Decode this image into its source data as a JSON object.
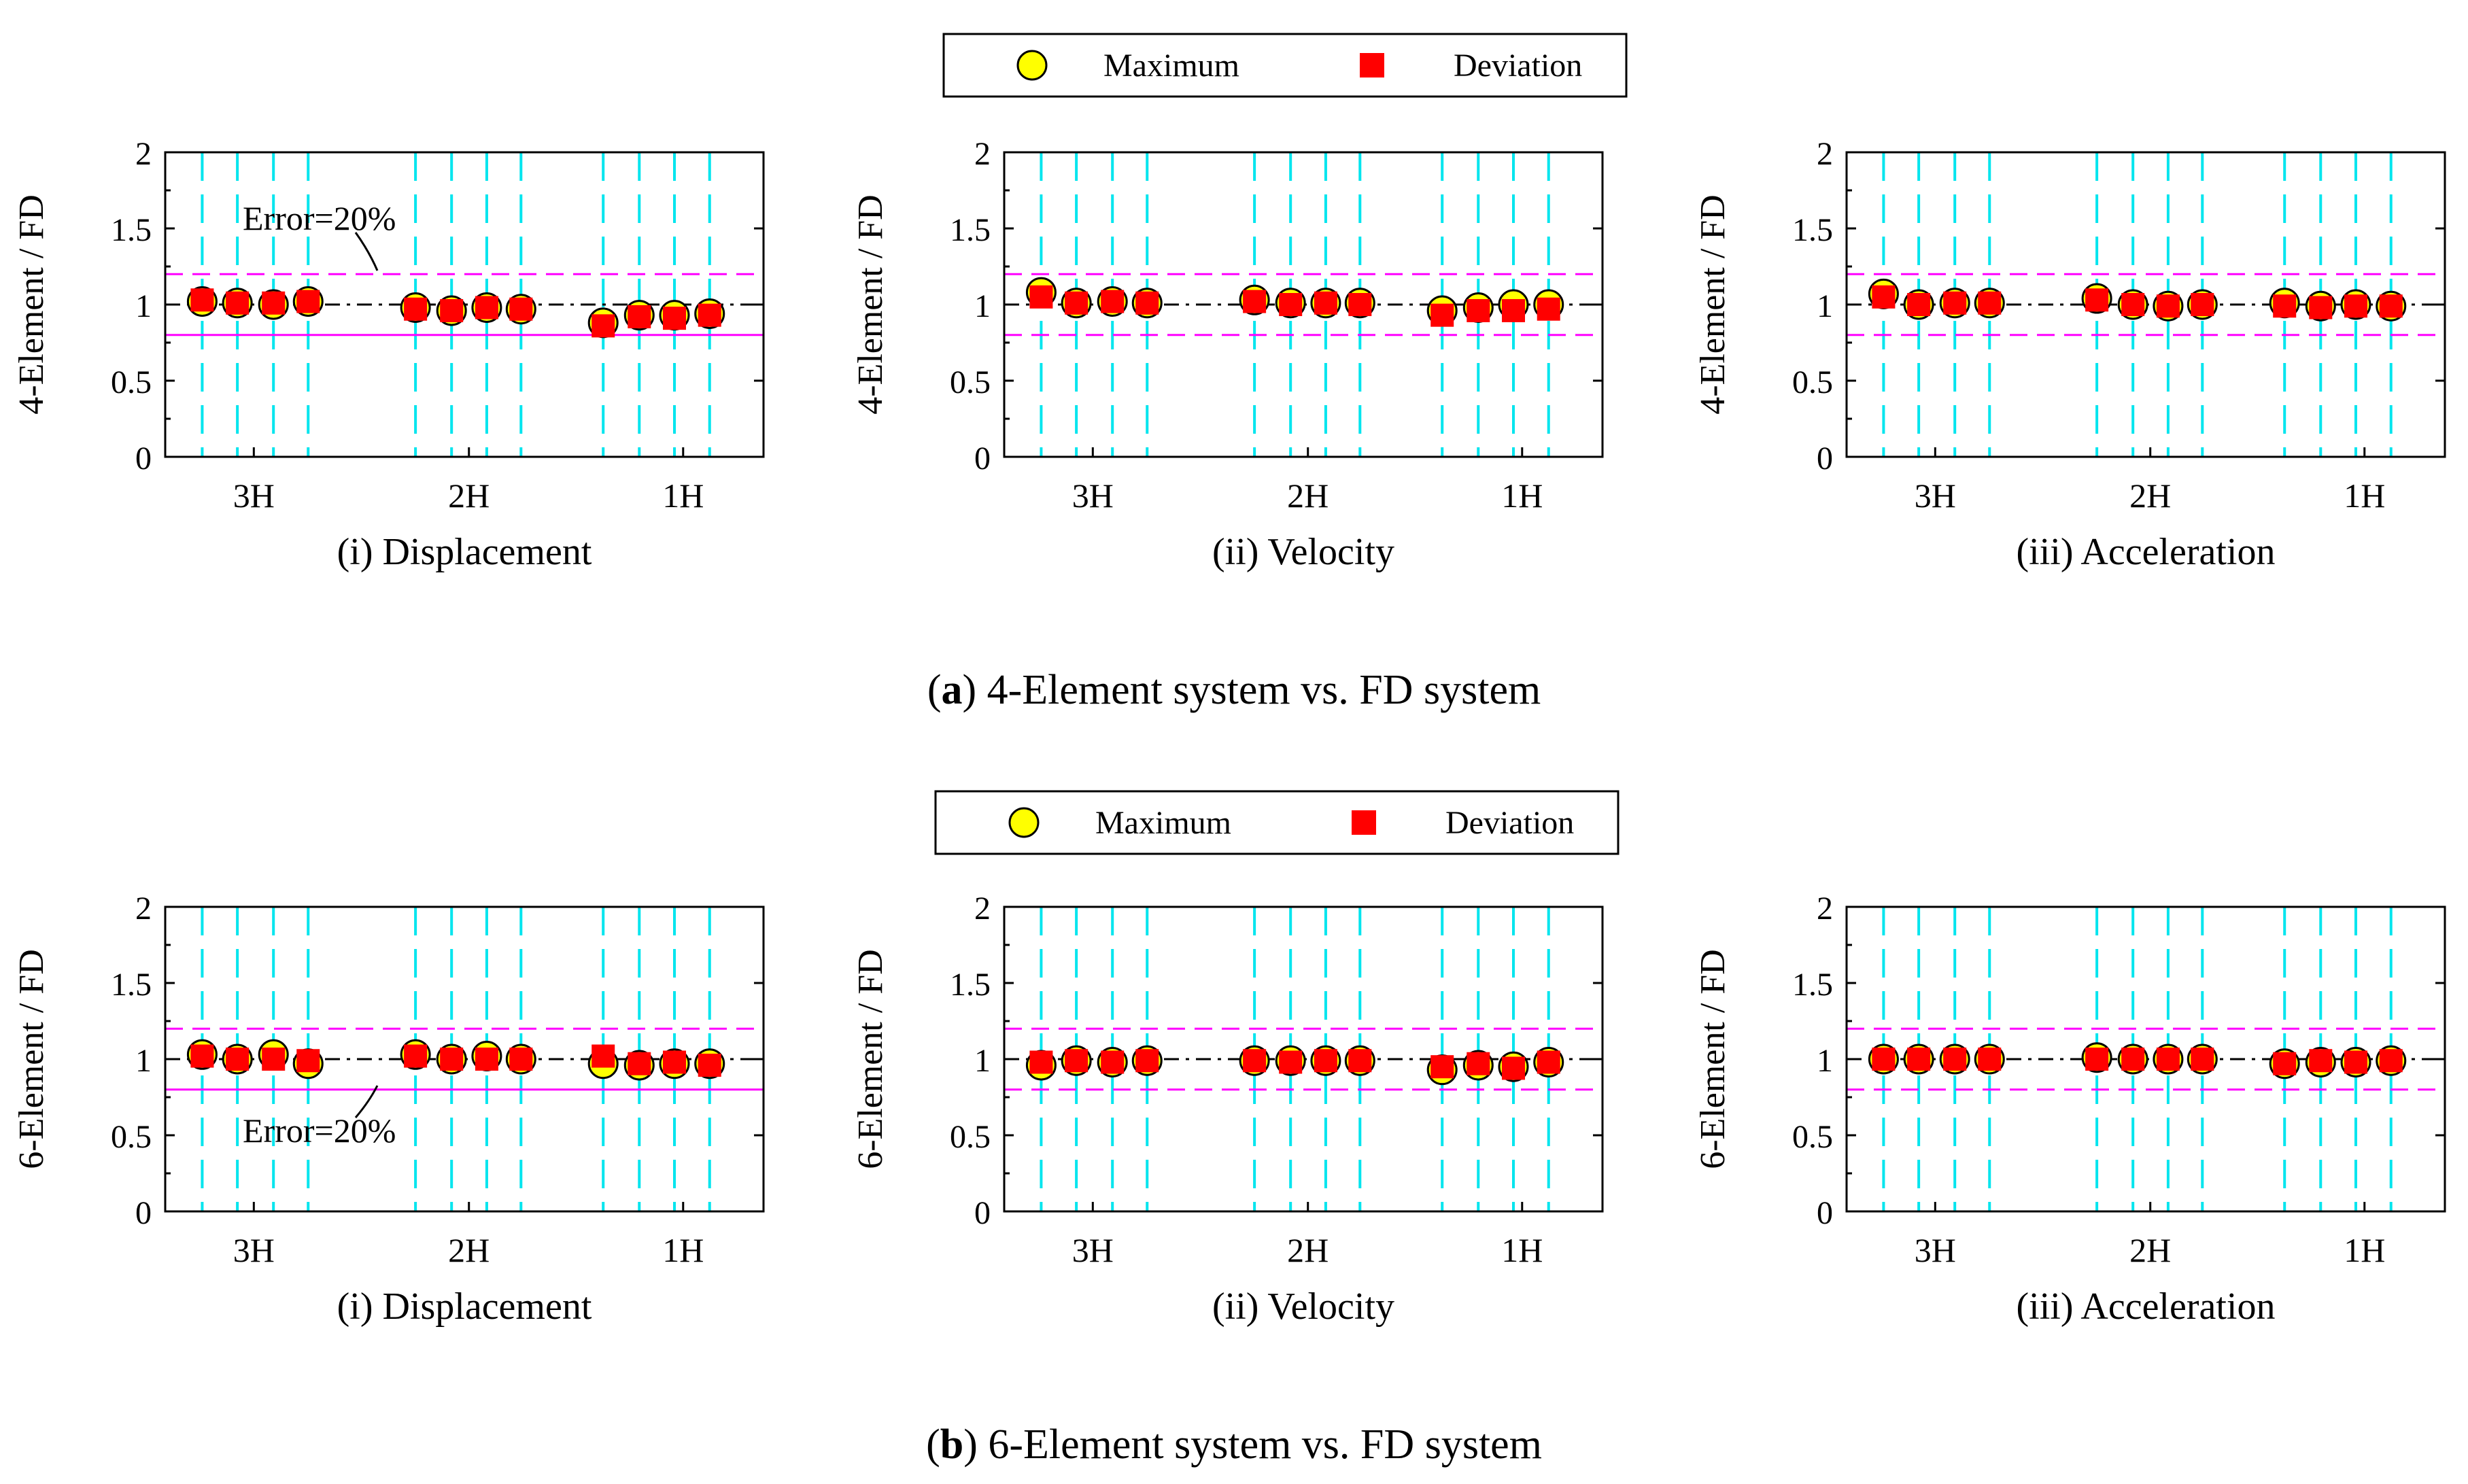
{
  "colors": {
    "maximum": "#ffff00",
    "deviation": "#ff0000",
    "grid_dash": "#00e5ee",
    "error_band": "#ff00ff",
    "reference": "#000000"
  },
  "legend": {
    "items": [
      {
        "label": "Maximum",
        "marker": "circle"
      },
      {
        "label": "Deviation",
        "marker": "square"
      }
    ]
  },
  "annotation": "Error=20%",
  "chart_data": [
    {
      "panel": "a",
      "caption_tag": "a",
      "caption": ") 4-Element system vs. FD system",
      "caption_open": "(",
      "type": "scatter",
      "ylabel": "4-Element / FD",
      "ylim": [
        0,
        2
      ],
      "yticks": [
        "0",
        "0.5",
        "1",
        "1.5",
        "2"
      ],
      "reference_line": 1,
      "error_band": [
        0.8,
        1.2
      ],
      "categories": [
        "3H",
        "2H",
        "1H"
      ],
      "subplots": [
        {
          "id": "a-disp",
          "xlabel": "(i) Displacement",
          "annotated": true,
          "series": [
            {
              "name": "Maximum",
              "values": [
                1.02,
                1.01,
                1.0,
                1.02,
                0.98,
                0.96,
                0.98,
                0.97,
                0.88,
                0.93,
                0.93,
                0.94
              ]
            },
            {
              "name": "Deviation",
              "values": [
                1.03,
                1.01,
                1.01,
                1.02,
                0.97,
                0.96,
                0.98,
                0.97,
                0.86,
                0.92,
                0.91,
                0.93
              ]
            }
          ]
        },
        {
          "id": "a-vel",
          "xlabel": "(ii) Velocity",
          "annotated": false,
          "series": [
            {
              "name": "Maximum",
              "values": [
                1.08,
                1.01,
                1.02,
                1.01,
                1.03,
                1.01,
                1.01,
                1.01,
                0.96,
                0.98,
                1.0,
                1.0
              ]
            },
            {
              "name": "Deviation",
              "values": [
                1.05,
                1.01,
                1.02,
                1.01,
                1.02,
                1.0,
                1.01,
                1.0,
                0.93,
                0.96,
                0.96,
                0.97
              ]
            }
          ]
        },
        {
          "id": "a-acc",
          "xlabel": "(iii) Acceleration",
          "annotated": false,
          "series": [
            {
              "name": "Maximum",
              "values": [
                1.07,
                1.0,
                1.01,
                1.01,
                1.04,
                1.0,
                0.99,
                1.0,
                1.01,
                0.99,
                1.0,
                0.99
              ]
            },
            {
              "name": "Deviation",
              "values": [
                1.05,
                1.0,
                1.01,
                1.01,
                1.03,
                1.0,
                0.99,
                1.0,
                0.99,
                0.98,
                0.99,
                0.99
              ]
            }
          ]
        }
      ]
    },
    {
      "panel": "b",
      "caption_tag": "b",
      "caption": ") 6-Element system vs. FD system",
      "caption_open": "(",
      "type": "scatter",
      "ylabel": "6-Element / FD",
      "ylim": [
        0,
        2
      ],
      "yticks": [
        "0",
        "0.5",
        "1",
        "1.5",
        "2"
      ],
      "reference_line": 1,
      "error_band": [
        0.8,
        1.2
      ],
      "categories": [
        "3H",
        "2H",
        "1H"
      ],
      "subplots": [
        {
          "id": "b-disp",
          "xlabel": "(i) Displacement",
          "annotated": true,
          "series": [
            {
              "name": "Maximum",
              "values": [
                1.03,
                1.0,
                1.03,
                0.97,
                1.03,
                1.0,
                1.02,
                1.0,
                0.97,
                0.96,
                0.97,
                0.97
              ]
            },
            {
              "name": "Deviation",
              "values": [
                1.02,
                1.0,
                1.0,
                0.99,
                1.02,
                1.0,
                1.0,
                1.0,
                1.02,
                0.97,
                0.98,
                0.96
              ]
            }
          ]
        },
        {
          "id": "b-vel",
          "xlabel": "(ii) Velocity",
          "annotated": false,
          "series": [
            {
              "name": "Maximum",
              "values": [
                0.96,
                0.99,
                0.98,
                0.99,
                0.99,
                0.99,
                0.99,
                0.99,
                0.93,
                0.96,
                0.95,
                0.98
              ]
            },
            {
              "name": "Deviation",
              "values": [
                0.98,
                0.99,
                0.98,
                0.99,
                0.99,
                0.98,
                0.99,
                0.99,
                0.95,
                0.97,
                0.94,
                0.98
              ]
            }
          ]
        },
        {
          "id": "b-acc",
          "xlabel": "(iii) Acceleration",
          "annotated": false,
          "series": [
            {
              "name": "Maximum",
              "values": [
                1.0,
                1.0,
                1.0,
                1.0,
                1.01,
                1.0,
                1.0,
                1.0,
                0.97,
                0.98,
                0.98,
                0.99
              ]
            },
            {
              "name": "Deviation",
              "values": [
                1.0,
                1.0,
                1.0,
                1.0,
                1.0,
                1.0,
                1.0,
                1.0,
                0.97,
                0.99,
                0.98,
                0.99
              ]
            }
          ]
        }
      ]
    }
  ]
}
